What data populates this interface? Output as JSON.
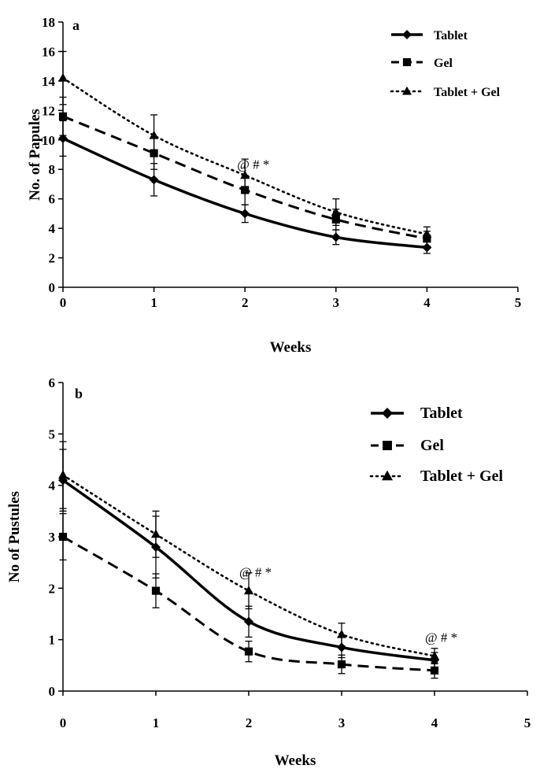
{
  "chart_data": [
    {
      "type": "line",
      "panel_label": "a",
      "xlabel": "Weeks",
      "ylabel": "No. of Papules",
      "xlim": [
        0,
        5
      ],
      "ylim": [
        0,
        18
      ],
      "x_ticks": [
        0,
        1,
        2,
        3,
        4,
        5
      ],
      "y_ticks": [
        0,
        2,
        4,
        6,
        8,
        10,
        12,
        14,
        16,
        18
      ],
      "x_tick_labels": [
        "0",
        "1",
        "2",
        "3",
        "4",
        "5"
      ],
      "y_tick_labels": [
        "0",
        "2",
        "4",
        "6",
        "8",
        "10",
        "12",
        "14",
        "16",
        "18"
      ],
      "legend_position": "top-right",
      "series": [
        {
          "name": "Tablet",
          "line_style": "solid",
          "marker": "diamond",
          "x": [
            0,
            1,
            2,
            3,
            4
          ],
          "y": [
            10.1,
            7.3,
            5.0,
            3.4,
            2.7
          ],
          "error": [
            1.2,
            1.1,
            0.6,
            0.5,
            0.4
          ]
        },
        {
          "name": "Gel",
          "line_style": "dashed",
          "marker": "square",
          "x": [
            0,
            1,
            2,
            3,
            4
          ],
          "y": [
            11.6,
            9.1,
            6.6,
            4.6,
            3.3
          ],
          "error": [
            1.3,
            1.1,
            1.0,
            0.7,
            0.5
          ]
        },
        {
          "name": "Tablet + Gel",
          "line_style": "dotted",
          "marker": "triangle",
          "x": [
            0,
            1,
            2,
            3,
            4
          ],
          "y": [
            14.2,
            10.3,
            7.6,
            5.1,
            3.6
          ],
          "error": [
            1.8,
            1.4,
            1.1,
            0.9,
            0.5
          ]
        }
      ],
      "annotations": [
        {
          "text": "@ # *",
          "x": 2,
          "y": 7.6
        }
      ]
    },
    {
      "type": "line",
      "panel_label": "b",
      "xlabel": "Weeks",
      "ylabel": "No of Pustules",
      "xlim": [
        0,
        5
      ],
      "ylim": [
        0,
        6
      ],
      "x_ticks": [
        0,
        1,
        2,
        3,
        4,
        5
      ],
      "y_ticks": [
        0,
        1,
        2,
        3,
        4,
        5,
        6
      ],
      "x_tick_labels": [
        "0",
        "1",
        "2",
        "3",
        "4",
        "5"
      ],
      "y_tick_labels": [
        "0",
        "1",
        "2",
        "3",
        "4",
        "5",
        "6"
      ],
      "legend_position": "top-right",
      "series": [
        {
          "name": "Tablet",
          "line_style": "solid",
          "marker": "diamond",
          "x": [
            0,
            1,
            2,
            3,
            4
          ],
          "y": [
            4.1,
            2.8,
            1.35,
            0.85,
            0.6
          ],
          "error": [
            0.6,
            0.6,
            0.3,
            0.2,
            0.15
          ]
        },
        {
          "name": "Gel",
          "line_style": "dashed",
          "marker": "square",
          "x": [
            0,
            1,
            2,
            3,
            4
          ],
          "y": [
            3.0,
            1.95,
            0.77,
            0.52,
            0.4
          ],
          "error": [
            0.45,
            0.33,
            0.2,
            0.18,
            0.15
          ]
        },
        {
          "name": "Tablet + Gel",
          "line_style": "dotted",
          "marker": "triangle",
          "x": [
            0,
            1,
            2,
            3,
            4
          ],
          "y": [
            4.2,
            3.05,
            1.95,
            1.1,
            0.68
          ],
          "error": [
            0.65,
            0.45,
            0.35,
            0.22,
            0.15
          ]
        }
      ],
      "annotations": [
        {
          "text": "@ # *",
          "x": 2,
          "y": 1.95
        },
        {
          "text": "@ # *",
          "x": 4,
          "y": 0.68
        }
      ]
    }
  ]
}
